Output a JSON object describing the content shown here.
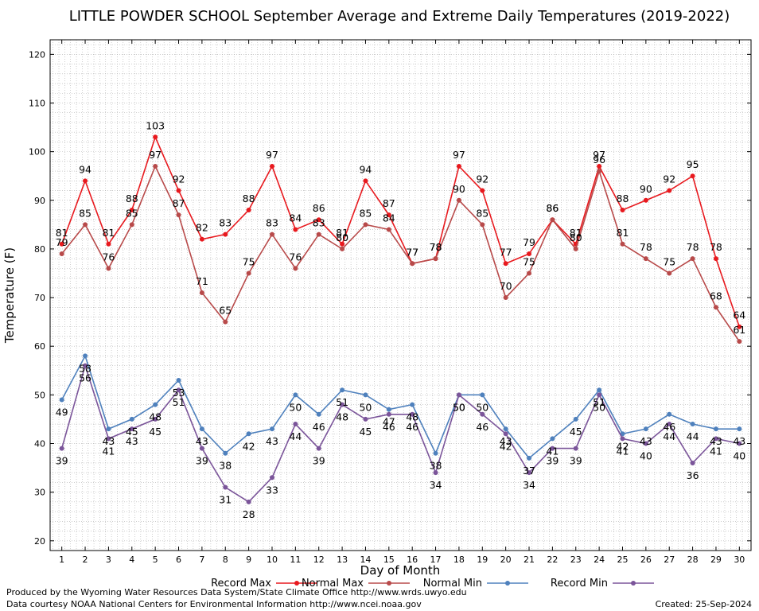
{
  "chart_data": {
    "type": "line",
    "title": "LITTLE POWDER SCHOOL September Average and Extreme Daily Temperatures (2019-2022)",
    "xlabel": "Day of Month",
    "ylabel": "Temperature (F)",
    "x": [
      1,
      2,
      3,
      4,
      5,
      6,
      7,
      8,
      9,
      10,
      11,
      12,
      13,
      14,
      15,
      16,
      17,
      18,
      19,
      20,
      21,
      22,
      23,
      24,
      25,
      26,
      27,
      28,
      29,
      30
    ],
    "xlim": [
      0.5,
      30.5
    ],
    "ylim": [
      18,
      123
    ],
    "yticks": [
      20,
      30,
      40,
      50,
      60,
      70,
      80,
      90,
      100,
      110,
      120
    ],
    "grid": true,
    "legend_position": "bottom",
    "series": [
      {
        "name": "Record Max",
        "color": "#e8191e",
        "values": [
          81,
          94,
          81,
          88,
          103,
          92,
          82,
          83,
          88,
          97,
          84,
          86,
          81,
          94,
          87,
          77,
          78,
          97,
          92,
          77,
          79,
          86,
          81,
          97,
          88,
          90,
          92,
          95,
          78,
          64
        ]
      },
      {
        "name": "Normal Max",
        "color": "#b84a4a",
        "values": [
          79,
          85,
          76,
          85,
          97,
          87,
          71,
          65,
          75,
          83,
          76,
          83,
          80,
          85,
          84,
          77,
          78,
          90,
          85,
          70,
          75,
          86,
          80,
          96,
          81,
          78,
          75,
          78,
          68,
          61
        ]
      },
      {
        "name": "Normal Min",
        "color": "#4f81bd",
        "values": [
          49,
          58,
          43,
          45,
          48,
          53,
          43,
          38,
          42,
          43,
          50,
          46,
          51,
          50,
          47,
          48,
          38,
          50,
          50,
          43,
          37,
          41,
          45,
          51,
          42,
          43,
          46,
          44,
          43,
          43
        ]
      },
      {
        "name": "Record Min",
        "color": "#7b559a",
        "values": [
          39,
          56,
          41,
          43,
          45,
          51,
          39,
          31,
          28,
          33,
          44,
          39,
          48,
          45,
          46,
          46,
          34,
          50,
          46,
          42,
          34,
          39,
          39,
          50,
          41,
          40,
          44,
          36,
          41,
          40
        ]
      }
    ]
  },
  "footer": {
    "left_line1": "Produced by the Wyoming Water Resources Data System/State Climate Office http://www.wrds.uwyo.edu",
    "left_line2": "Data courtesy NOAA National Centers for Environmental Information http://www.ncei.noaa.gov",
    "created": "Created:  25-Sep-2024"
  }
}
